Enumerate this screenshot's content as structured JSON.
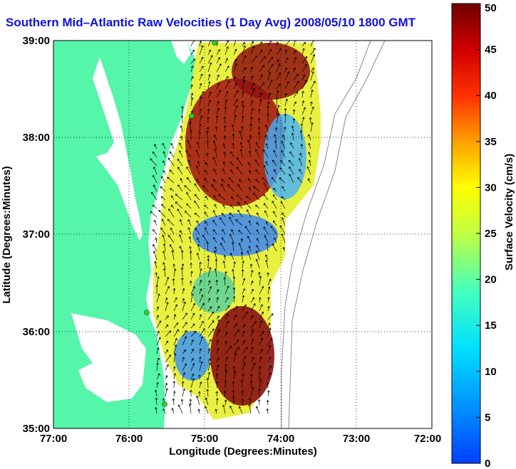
{
  "map": {
    "title": "Southern Mid–Atlantic Raw Velocities (1 Day Avg) 2008/05/10 1800 GMT",
    "xlabel": "Longitude (Degrees:Minutes)",
    "ylabel": "Latitude (Degrees:Minutes)",
    "x_ticks": [
      "77:00",
      "76:00",
      "75:00",
      "74:00",
      "73:00",
      "72:00"
    ],
    "y_ticks": [
      "39:00",
      "38:00",
      "37:00",
      "36:00",
      "35:00"
    ],
    "colorbar": {
      "label": "Surface Velocity (cm/s)",
      "ticks": [
        "0",
        "5",
        "10",
        "15",
        "20",
        "25",
        "30",
        "35",
        "40",
        "45",
        "50"
      ],
      "range": [
        0,
        50
      ]
    },
    "colors": {
      "land": "#55f5aa",
      "water": "#ffffff",
      "title": "#1010e0",
      "station": "#22dd22"
    },
    "grid": true
  }
}
